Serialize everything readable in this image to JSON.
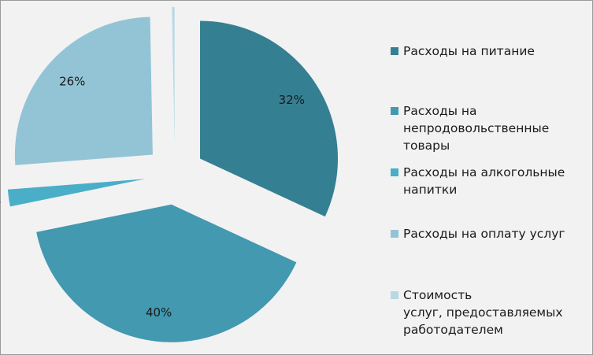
{
  "chart_data": {
    "type": "pie",
    "exploded": true,
    "legend_position": "right",
    "slices": [
      {
        "label": "Расходы на питание",
        "value": 32,
        "display": "32%",
        "color": "#357f92"
      },
      {
        "label": "Расходы на непродовольственные товары",
        "value": 40,
        "display": "40%",
        "color": "#4299b0"
      },
      {
        "label": "Расходы на алкогольные напитки",
        "value": 2,
        "display": "2%",
        "color": "#4aaec8"
      },
      {
        "label": "Расходы на оплату услуг",
        "value": 26,
        "display": "26%",
        "color": "#93c4d6"
      },
      {
        "label": "Стоимость услуг, предоставляемых работодателем",
        "value": 0.3,
        "display": "0%",
        "color": "#b7d9e6"
      }
    ],
    "legend": [
      {
        "text": "Расходы на питание",
        "color": "#357f92"
      },
      {
        "text": "Расходы на\nнепродовольственные\nтовары",
        "color": "#4299b0"
      },
      {
        "text": "Расходы на алкогольные\nнапитки",
        "color": "#4aaec8"
      },
      {
        "text": "Расходы на оплату услуг",
        "color": "#93c4d6"
      },
      {
        "text": "Стоимость\nуслуг, предоставляемых\nработодателем",
        "color": "#b7d9e6"
      }
    ]
  }
}
